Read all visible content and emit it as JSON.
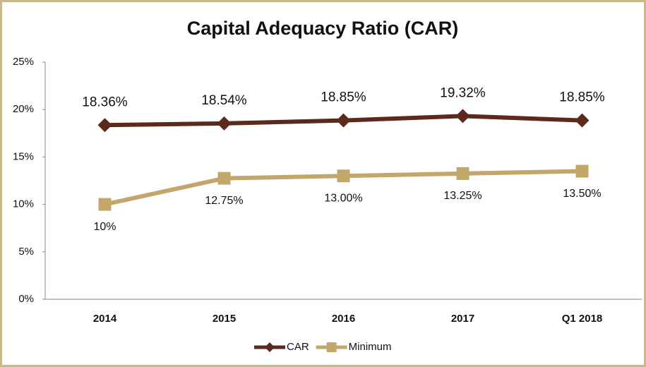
{
  "chart_data": {
    "type": "line",
    "title": "Capital Adequacy Ratio (CAR)",
    "categories": [
      "2014",
      "2015",
      "2016",
      "2017",
      "Q1 2018"
    ],
    "series": [
      {
        "name": "CAR",
        "color": "#5b2a1c",
        "marker": "diamond",
        "values": [
          18.36,
          18.54,
          18.85,
          19.32,
          18.85
        ],
        "value_labels": [
          "18.36%",
          "18.54%",
          "18.85%",
          "19.32%",
          "18.85%"
        ],
        "label_position": "above"
      },
      {
        "name": "Minimum",
        "color": "#c2a66a",
        "marker": "square",
        "values": [
          10,
          12.75,
          13,
          13.25,
          13.5
        ],
        "value_labels": [
          "10%",
          "12.75%",
          "13.00%",
          "13.25%",
          "13.50%"
        ],
        "label_position": "below"
      }
    ],
    "ylim": [
      0,
      25
    ],
    "yticks": [
      {
        "value": 0,
        "label": "0%"
      },
      {
        "value": 5,
        "label": "5%"
      },
      {
        "value": 10,
        "label": "10%"
      },
      {
        "value": 15,
        "label": "15%"
      },
      {
        "value": 20,
        "label": "20%"
      },
      {
        "value": 25,
        "label": "25%"
      }
    ],
    "grid": false,
    "legend": "bottom"
  }
}
